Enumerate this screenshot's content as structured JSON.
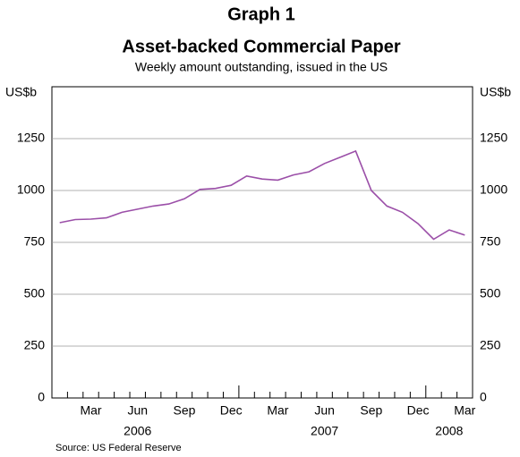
{
  "chart_data": {
    "type": "line",
    "graph_label": "Graph 1",
    "title": "Asset-backed Commercial Paper",
    "subtitle": "Weekly amount outstanding, issued in the US",
    "y_label": "US$b",
    "source": "Source: US Federal Reserve",
    "x": [
      "2006-01",
      "2006-02",
      "2006-03",
      "2006-04",
      "2006-05",
      "2006-06",
      "2006-07",
      "2006-08",
      "2006-09",
      "2006-10",
      "2006-11",
      "2006-12",
      "2007-01",
      "2007-02",
      "2007-03",
      "2007-04",
      "2007-05",
      "2007-06",
      "2007-07",
      "2007-08",
      "2007-09",
      "2007-10",
      "2007-11",
      "2007-12",
      "2008-01",
      "2008-02",
      "2008-03"
    ],
    "series": [
      {
        "name": "Asset-backed commercial paper",
        "color": "#9b4fa8",
        "values": [
          845,
          860,
          862,
          868,
          895,
          910,
          925,
          935,
          960,
          1005,
          1010,
          1025,
          1070,
          1055,
          1050,
          1075,
          1090,
          1130,
          1160,
          1190,
          1000,
          925,
          895,
          840,
          765,
          810,
          785
        ]
      }
    ],
    "xlim": [
      "2006-01",
      "2008-03"
    ],
    "xticks": [
      {
        "value": "2006-03",
        "label": "Mar"
      },
      {
        "value": "2006-06",
        "label": "Jun"
      },
      {
        "value": "2006-09",
        "label": "Sep"
      },
      {
        "value": "2006-12",
        "label": "Dec"
      },
      {
        "value": "2007-03",
        "label": "Mar"
      },
      {
        "value": "2007-06",
        "label": "Jun"
      },
      {
        "value": "2007-09",
        "label": "Sep"
      },
      {
        "value": "2007-12",
        "label": "Dec"
      },
      {
        "value": "2008-03",
        "label": "Mar"
      }
    ],
    "year_labels": [
      {
        "value": "2006-06",
        "label": "2006"
      },
      {
        "value": "2007-06",
        "label": "2007"
      },
      {
        "value": "2008-02",
        "label": "2008"
      }
    ],
    "ylim": [
      0,
      1500
    ],
    "yticks": [
      0,
      250,
      500,
      750,
      1000,
      1250
    ],
    "grid": true
  }
}
